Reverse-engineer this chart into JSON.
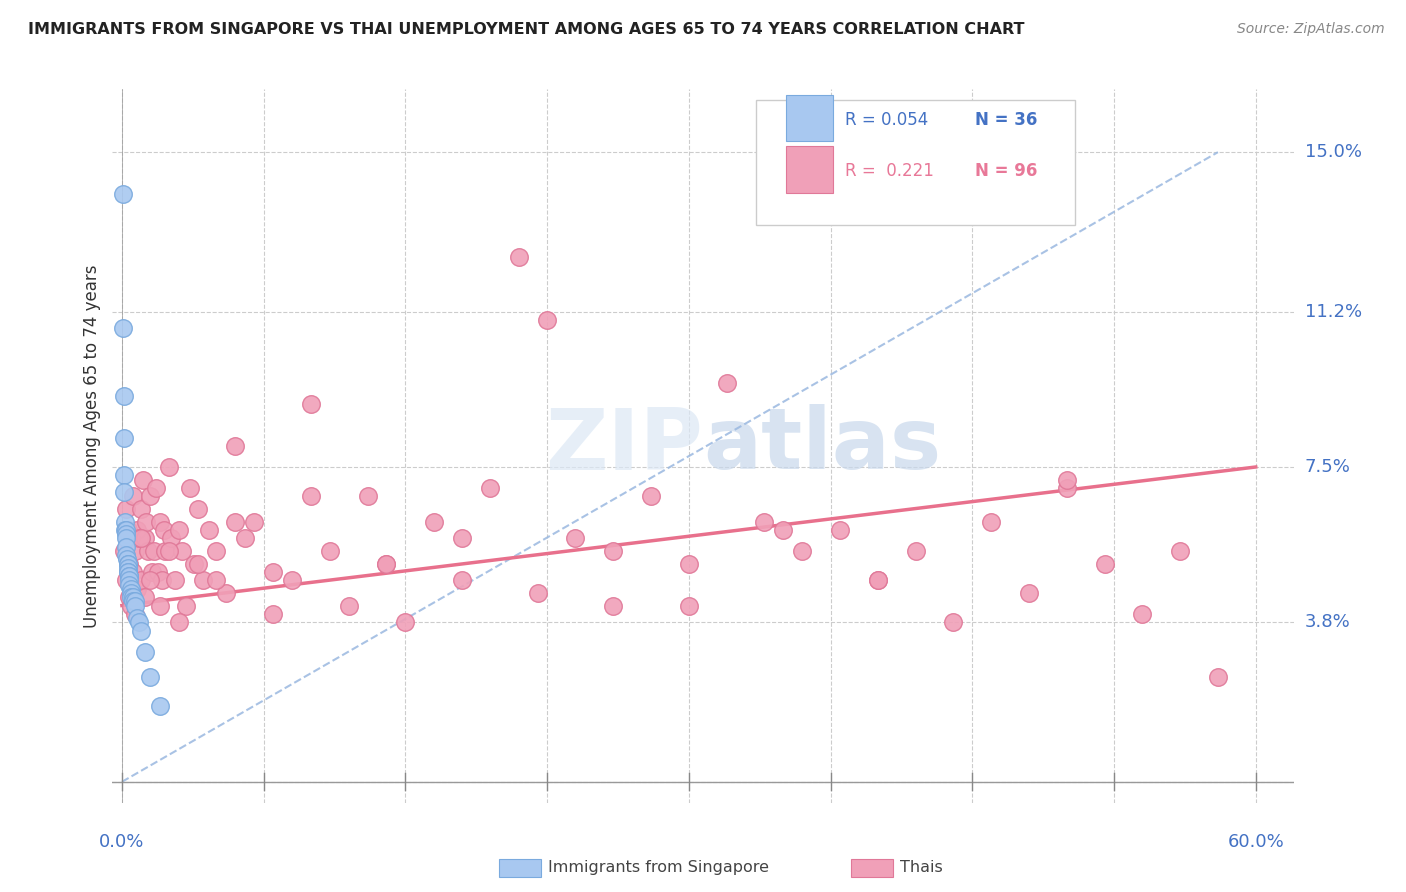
{
  "title": "IMMIGRANTS FROM SINGAPORE VS THAI UNEMPLOYMENT AMONG AGES 65 TO 74 YEARS CORRELATION CHART",
  "source": "Source: ZipAtlas.com",
  "ylabel": "Unemployment Among Ages 65 to 74 years",
  "color_singapore": "#a8c8f0",
  "color_thai": "#f0a0b8",
  "color_sg_edge": "#7aaade",
  "color_thai_edge": "#e07898",
  "color_sg_line": "#9ab8e0",
  "color_thai_line": "#e8708c",
  "ytick_vals": [
    0.0,
    0.038,
    0.075,
    0.112,
    0.15
  ],
  "ytick_labels": [
    "",
    "3.8%",
    "7.5%",
    "11.2%",
    "15.0%"
  ],
  "xlim": [
    0.0,
    0.6
  ],
  "ylim": [
    0.0,
    0.16
  ],
  "sg_x": [
    0.0005,
    0.0008,
    0.001,
    0.001,
    0.001,
    0.0012,
    0.0015,
    0.0015,
    0.002,
    0.002,
    0.002,
    0.002,
    0.002,
    0.0025,
    0.003,
    0.003,
    0.003,
    0.003,
    0.003,
    0.004,
    0.004,
    0.004,
    0.004,
    0.005,
    0.005,
    0.005,
    0.006,
    0.006,
    0.007,
    0.007,
    0.008,
    0.009,
    0.01,
    0.012,
    0.015,
    0.02
  ],
  "sg_y": [
    0.14,
    0.108,
    0.092,
    0.082,
    0.073,
    0.069,
    0.062,
    0.06,
    0.06,
    0.059,
    0.058,
    0.056,
    0.054,
    0.053,
    0.052,
    0.052,
    0.051,
    0.05,
    0.05,
    0.049,
    0.049,
    0.048,
    0.047,
    0.046,
    0.045,
    0.044,
    0.044,
    0.043,
    0.043,
    0.042,
    0.039,
    0.038,
    0.036,
    0.031,
    0.025,
    0.018
  ],
  "thai_x": [
    0.001,
    0.002,
    0.002,
    0.003,
    0.004,
    0.004,
    0.005,
    0.005,
    0.006,
    0.006,
    0.007,
    0.007,
    0.008,
    0.008,
    0.009,
    0.01,
    0.01,
    0.011,
    0.012,
    0.012,
    0.013,
    0.014,
    0.015,
    0.016,
    0.017,
    0.018,
    0.019,
    0.02,
    0.021,
    0.022,
    0.023,
    0.025,
    0.026,
    0.028,
    0.03,
    0.032,
    0.034,
    0.036,
    0.038,
    0.04,
    0.043,
    0.046,
    0.05,
    0.055,
    0.06,
    0.065,
    0.07,
    0.08,
    0.09,
    0.1,
    0.11,
    0.12,
    0.13,
    0.14,
    0.15,
    0.165,
    0.18,
    0.195,
    0.21,
    0.225,
    0.24,
    0.26,
    0.28,
    0.3,
    0.32,
    0.34,
    0.36,
    0.38,
    0.4,
    0.42,
    0.44,
    0.46,
    0.48,
    0.5,
    0.52,
    0.54,
    0.56,
    0.01,
    0.015,
    0.02,
    0.025,
    0.03,
    0.04,
    0.05,
    0.06,
    0.08,
    0.1,
    0.14,
    0.18,
    0.22,
    0.26,
    0.3,
    0.35,
    0.4,
    0.5,
    0.58
  ],
  "thai_y": [
    0.055,
    0.065,
    0.048,
    0.06,
    0.052,
    0.044,
    0.058,
    0.042,
    0.068,
    0.05,
    0.055,
    0.04,
    0.06,
    0.046,
    0.058,
    0.065,
    0.048,
    0.072,
    0.058,
    0.044,
    0.062,
    0.055,
    0.068,
    0.05,
    0.055,
    0.07,
    0.05,
    0.062,
    0.048,
    0.06,
    0.055,
    0.075,
    0.058,
    0.048,
    0.06,
    0.055,
    0.042,
    0.07,
    0.052,
    0.065,
    0.048,
    0.06,
    0.055,
    0.045,
    0.08,
    0.058,
    0.062,
    0.05,
    0.048,
    0.09,
    0.055,
    0.042,
    0.068,
    0.052,
    0.038,
    0.062,
    0.048,
    0.07,
    0.125,
    0.11,
    0.058,
    0.042,
    0.068,
    0.052,
    0.095,
    0.062,
    0.055,
    0.06,
    0.048,
    0.055,
    0.038,
    0.062,
    0.045,
    0.07,
    0.052,
    0.04,
    0.055,
    0.058,
    0.048,
    0.042,
    0.055,
    0.038,
    0.052,
    0.048,
    0.062,
    0.04,
    0.068,
    0.052,
    0.058,
    0.045,
    0.055,
    0.042,
    0.06,
    0.048,
    0.072,
    0.025
  ],
  "sg_trend_x": [
    0.0,
    0.58
  ],
  "sg_trend_y": [
    0.0,
    0.15
  ],
  "thai_trend_start_y": 0.042,
  "thai_trend_end_y": 0.075
}
